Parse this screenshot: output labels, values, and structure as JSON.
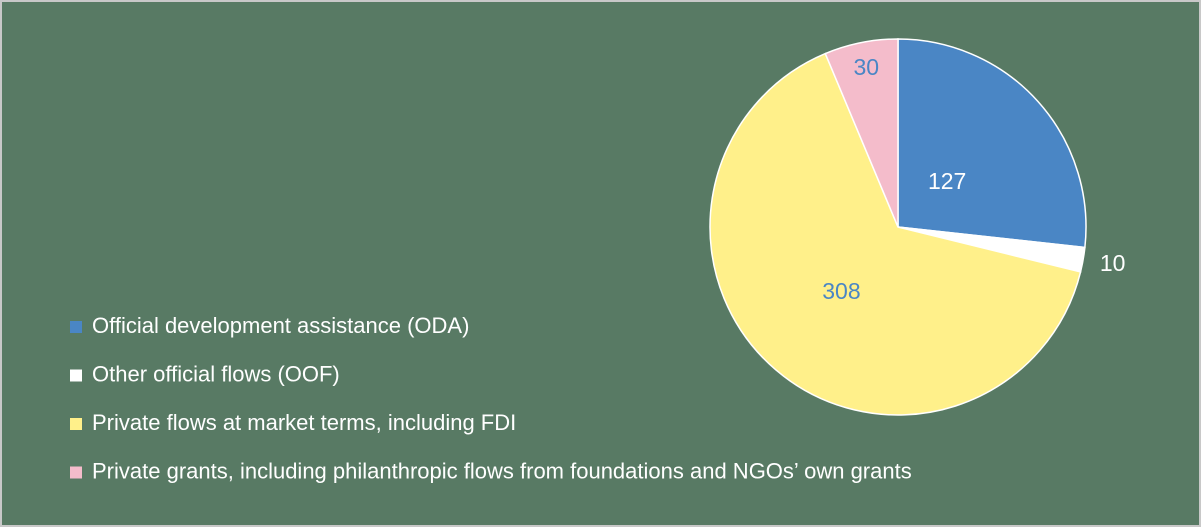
{
  "chart_data": {
    "type": "pie",
    "categories": [
      "Official development assistance (ODA)",
      "Other official flows (OOF)",
      "Private flows at market terms, including FDI",
      "Private grants, including philanthropic flows from foundations and NGOs’ own grants"
    ],
    "values": [
      127,
      10,
      308,
      30
    ],
    "colors": [
      "#4a86c5",
      "#ffffff",
      "#fff08a",
      "#f4bccb"
    ],
    "legend": "bottom-left"
  }
}
